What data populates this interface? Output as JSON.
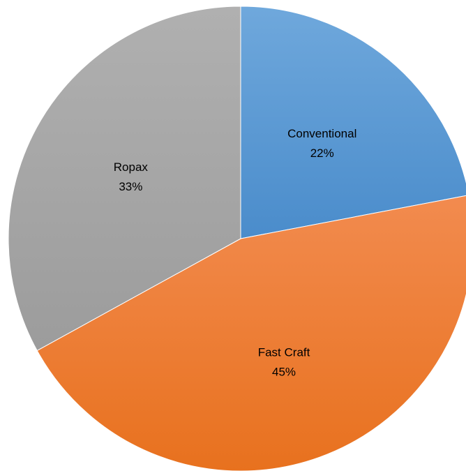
{
  "chart_data": {
    "type": "pie",
    "categories": [
      "Conventional",
      "Fast Craft",
      "Ropax"
    ],
    "values": [
      22,
      45,
      33
    ],
    "value_labels": [
      "22%",
      "45%",
      "33%"
    ],
    "colors": [
      "#5b9bd5",
      "#ed7d31",
      "#a5a5a5"
    ],
    "title": "",
    "legend": "none",
    "start_angle": "12 o'clock",
    "direction": "clockwise"
  }
}
